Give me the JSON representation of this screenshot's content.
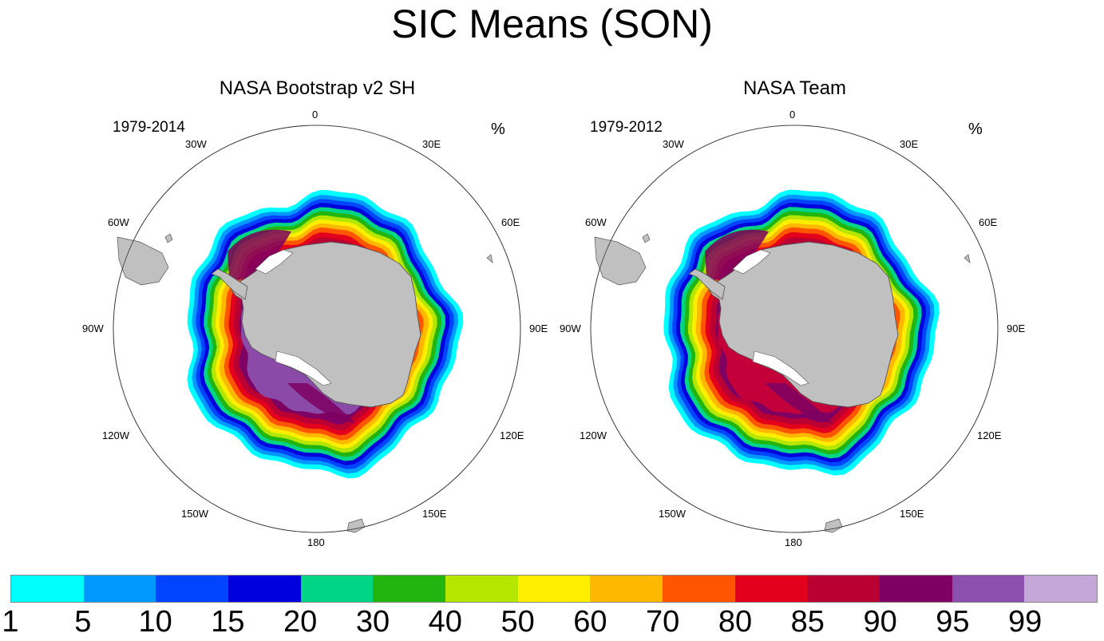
{
  "title": "SIC Means (SON)",
  "panels": [
    {
      "title": "NASA Bootstrap v2 SH",
      "period": "1979-2014",
      "units": "%",
      "longitude_labels": [
        "0",
        "30E",
        "60E",
        "90E",
        "120E",
        "150E",
        "180",
        "150W",
        "120W",
        "90W",
        "60W",
        "30W"
      ],
      "interior_fill": "#8b4aa8"
    },
    {
      "title": "NASA Team",
      "period": "1979-2012",
      "units": "%",
      "longitude_labels": [
        "0",
        "30E",
        "60E",
        "90E",
        "120E",
        "150E",
        "180",
        "150W",
        "120W",
        "90W",
        "60W",
        "30W"
      ],
      "interior_fill": "#c4003a"
    }
  ],
  "colorbar": {
    "colors": [
      "#00ffff",
      "#0099ff",
      "#0044ff",
      "#0000dd",
      "#00d485",
      "#22b50f",
      "#b5e600",
      "#ffee00",
      "#ffb800",
      "#ff5500",
      "#e3001c",
      "#ba0033",
      "#7d0062",
      "#8b4fad",
      "#c5a8d8"
    ],
    "labels": [
      "1",
      "5",
      "10",
      "15",
      "20",
      "30",
      "40",
      "50",
      "60",
      "70",
      "80",
      "85",
      "90",
      "95",
      "99"
    ]
  },
  "colors": {
    "land": "#c0c0c0",
    "coast": "#555555",
    "open_ocean": "#ffffff",
    "outer_ice_edge": "#00ffff"
  }
}
